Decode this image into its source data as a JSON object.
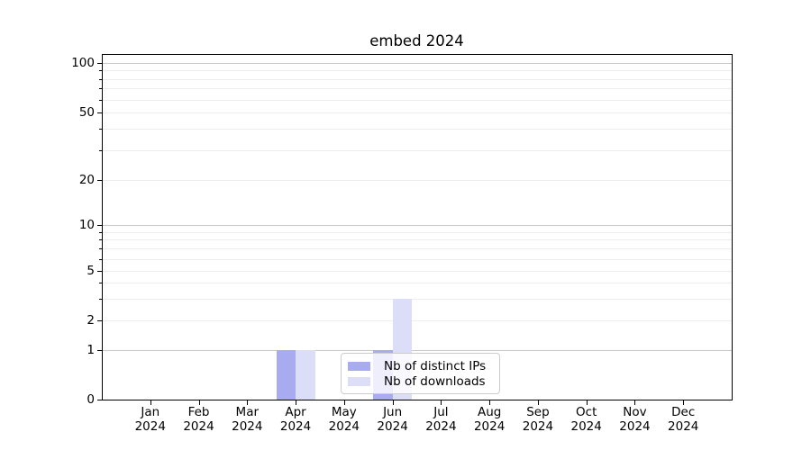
{
  "chart_data": {
    "type": "bar",
    "title": "embed 2024",
    "categories": [
      "Jan 2024",
      "Feb 2024",
      "Mar 2024",
      "Apr 2024",
      "May 2024",
      "Jun 2024",
      "Jul 2024",
      "Aug 2024",
      "Sep 2024",
      "Oct 2024",
      "Nov 2024",
      "Dec 2024"
    ],
    "x_tick_months": [
      "Jan",
      "Feb",
      "Mar",
      "Apr",
      "May",
      "Jun",
      "Jul",
      "Aug",
      "Sep",
      "Oct",
      "Nov",
      "Dec"
    ],
    "x_tick_year": "2024",
    "series": [
      {
        "name": "Nb of distinct IPs",
        "color": "#a9abf0",
        "values": [
          0,
          0,
          0,
          1,
          0,
          1,
          0,
          0,
          0,
          0,
          0,
          0
        ]
      },
      {
        "name": "Nb of downloads",
        "color": "#dcddf7",
        "values": [
          0,
          0,
          0,
          1,
          0,
          3,
          0,
          0,
          0,
          0,
          0,
          0
        ]
      }
    ],
    "xlabel": "",
    "ylabel": "",
    "yscale": "symlog",
    "ylim": [
      0,
      115
    ],
    "y_tick_values": [
      0,
      1,
      2,
      5,
      10,
      20,
      50,
      100
    ],
    "y_tick_labels": [
      "0",
      "1",
      "2",
      "5",
      "10",
      "20",
      "50",
      "100"
    ],
    "y_major_grid_values": [
      1,
      10,
      100
    ],
    "y_minor_grid_values": [
      2,
      3,
      4,
      5,
      6,
      7,
      8,
      9,
      20,
      30,
      40,
      50,
      60,
      70,
      80,
      90
    ],
    "grid": true,
    "legend_position": "inside lower-center"
  },
  "colors": {
    "background": "#ffffff",
    "axis": "#000000",
    "grid_major": "#c8c8c8",
    "grid_minor": "#ededed",
    "text": "#000000",
    "legend_border": "#cccccc"
  }
}
